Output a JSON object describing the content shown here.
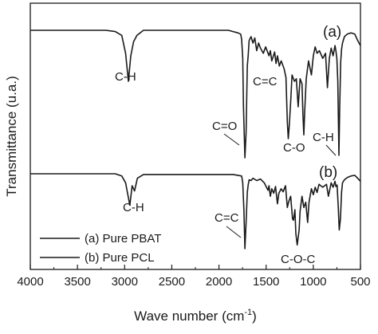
{
  "chart_data": {
    "type": "line",
    "xlabel": "Wave number (cm",
    "xlabel_sup": "-1",
    "xlabel_end": ")",
    "ylabel": "Transmittance (u.a.)",
    "xlim": [
      4000,
      500
    ],
    "x_reversed": true,
    "x_ticks": [
      "4000",
      "3500",
      "3000",
      "2500",
      "2000",
      "1500",
      "1000",
      "500"
    ],
    "y_ticks_shown": false,
    "grid": false,
    "legend_position": "bottom-left",
    "legend": [
      "(a) Pure PBAT",
      "(b) Pure PCL"
    ],
    "series": [
      {
        "name": "(a) Pure PBAT",
        "tag": "(a)",
        "baseline": 100,
        "min_value": 0,
        "x": [
          4000,
          3800,
          3600,
          3200,
          3100,
          3030,
          2990,
          2960,
          2935,
          2905,
          2870,
          2800,
          2500,
          2200,
          1900,
          1850,
          1800,
          1770,
          1760,
          1748,
          1740,
          1725,
          1712,
          1700,
          1690,
          1680,
          1660,
          1640,
          1620,
          1600,
          1580,
          1560,
          1530,
          1505,
          1470,
          1455,
          1440,
          1410,
          1395,
          1380,
          1360,
          1340,
          1310,
          1290,
          1275,
          1265,
          1255,
          1240,
          1225,
          1200,
          1180,
          1160,
          1140,
          1120,
          1110,
          1100,
          1090,
          1075,
          1050,
          1020,
          1000,
          980,
          960,
          935,
          900,
          870,
          850,
          830,
          810,
          790,
          770,
          760,
          750,
          740,
          728,
          720,
          710,
          700,
          690,
          670,
          640,
          600,
          560,
          530,
          500
        ],
        "y": [
          100,
          100,
          100,
          100,
          99,
          96,
          82,
          60,
          80,
          91,
          96,
          100,
          100,
          100,
          100,
          99,
          98,
          97,
          93,
          78,
          40,
          0,
          20,
          72,
          80,
          92,
          95,
          90,
          94,
          84,
          90,
          86,
          82,
          87,
          80,
          84,
          76,
          83,
          74,
          80,
          72,
          76,
          70,
          63,
          28,
          15,
          25,
          44,
          65,
          60,
          62,
          40,
          62,
          58,
          35,
          18,
          38,
          62,
          76,
          65,
          80,
          87,
          82,
          84,
          78,
          82,
          55,
          78,
          86,
          80,
          88,
          84,
          78,
          60,
          2,
          40,
          75,
          85,
          90,
          95,
          97,
          98,
          97,
          92,
          88
        ]
      },
      {
        "name": "(b) Pure PCL",
        "tag": "(b)",
        "baseline": 100,
        "min_value": 0,
        "x": [
          4000,
          3800,
          3600,
          3200,
          3100,
          3030,
          2990,
          2945,
          2920,
          2895,
          2865,
          2800,
          2500,
          2200,
          1900,
          1850,
          1800,
          1760,
          1748,
          1735,
          1725,
          1712,
          1700,
          1690,
          1680,
          1660,
          1640,
          1600,
          1560,
          1520,
          1480,
          1470,
          1455,
          1440,
          1420,
          1400,
          1380,
          1365,
          1340,
          1320,
          1295,
          1275,
          1260,
          1240,
          1220,
          1210,
          1195,
          1185,
          1170,
          1150,
          1140,
          1120,
          1100,
          1080,
          1060,
          1045,
          1020,
          1000,
          980,
          960,
          940,
          900,
          860,
          840,
          810,
          790,
          770,
          760,
          748,
          735,
          725,
          712,
          700,
          690,
          670,
          640,
          600,
          560,
          530,
          500
        ],
        "y": [
          100,
          100,
          100,
          100,
          100,
          97,
          88,
          58,
          84,
          77,
          94,
          99,
          99,
          99,
          99,
          99,
          98,
          97,
          88,
          50,
          0,
          35,
          75,
          85,
          92,
          91,
          94,
          91,
          93,
          88,
          78,
          84,
          70,
          80,
          74,
          83,
          60,
          74,
          80,
          76,
          84,
          55,
          63,
          70,
          40,
          38,
          52,
          20,
          5,
          25,
          50,
          70,
          55,
          62,
          35,
          62,
          80,
          72,
          82,
          75,
          86,
          82,
          86,
          70,
          88,
          82,
          90,
          83,
          85,
          55,
          25,
          40,
          75,
          88,
          92,
          95,
          97,
          98,
          94,
          90
        ]
      }
    ],
    "annotations": [
      "C-H",
      "C=O",
      "C=C",
      "C-O",
      "C-H",
      "C-H",
      "C=C",
      "C-O-C"
    ]
  }
}
